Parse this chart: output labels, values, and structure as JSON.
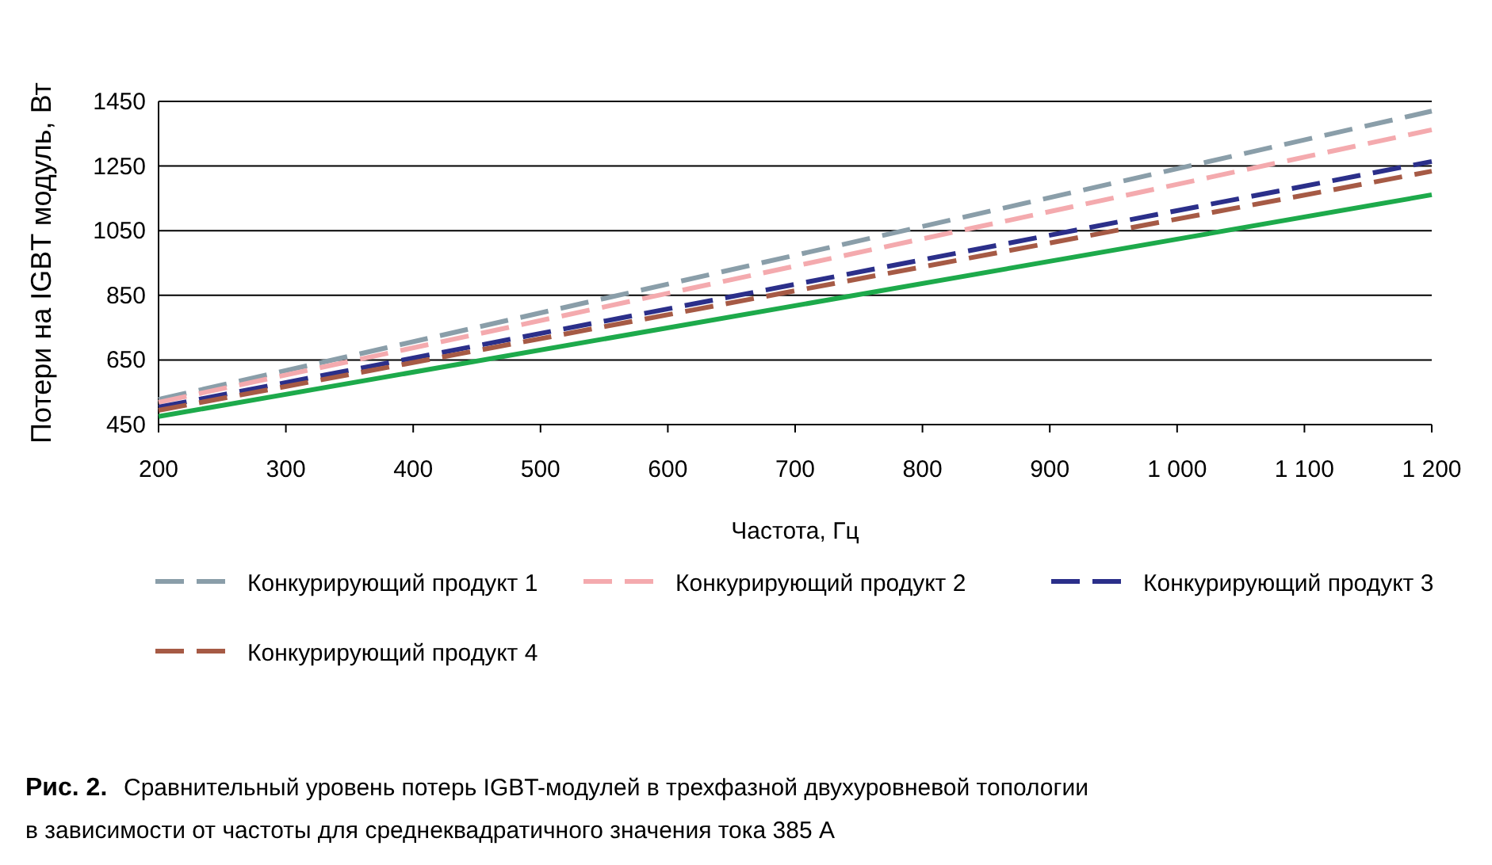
{
  "chart_data": {
    "type": "line",
    "xlabel": "Частота, Гц",
    "ylabel": "Потери на IGBT модуль, Вт",
    "x": [
      200,
      1200
    ],
    "series": [
      {
        "name": "Конкурирующий продукт 1",
        "color": "#8a9ea9",
        "line_style": "dashed",
        "values": [
          528,
          1420
        ]
      },
      {
        "name": "Конкурирующий продукт 2",
        "color": "#f4aaae",
        "line_style": "dashed",
        "values": [
          519,
          1362
        ]
      },
      {
        "name": "Конкурирующий продукт 3",
        "color": "#2b2f8a",
        "line_style": "dashed",
        "values": [
          504,
          1264
        ]
      },
      {
        "name": "Конкурирующий продукт 4",
        "color": "#a65a45",
        "line_style": "dashed",
        "values": [
          494,
          1234
        ]
      },
      {
        "color": "#1daa4b",
        "line_style": "solid",
        "values": [
          475,
          1161
        ]
      }
    ],
    "xlim": [
      200,
      1200
    ],
    "xticks": [
      200,
      300,
      400,
      500,
      600,
      700,
      800,
      900,
      {
        "value": 1000,
        "label": "1 000"
      },
      {
        "value": 1100,
        "label": "1 100"
      },
      {
        "value": 1200,
        "label": "1 200"
      }
    ],
    "ylim": [
      450,
      1450
    ],
    "yticks": [
      450,
      650,
      850,
      1050,
      1250,
      1450
    ],
    "grid": "y",
    "legend": "bottom",
    "marker": "none",
    "annotations": [
      "Рис. 2.",
      "Сравнительный уровень потерь IGBT-модулей в трехфазной двухуровневой топологии",
      "в зависимости от частоты для среднеквадратичного значения тока 385 А"
    ]
  }
}
